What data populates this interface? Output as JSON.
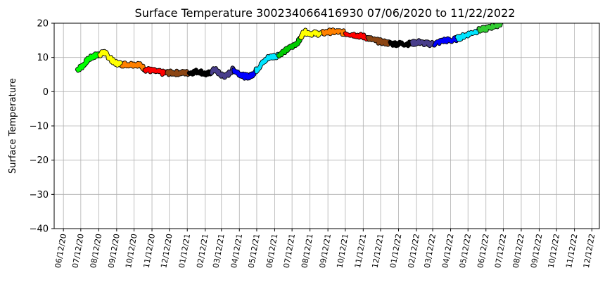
{
  "chart_data": {
    "type": "line",
    "title": "Surface Temperature 300234066416930  07/06/2020 to 11/22/2022",
    "xlabel": "",
    "ylabel": "Surface Temperature",
    "ylim": [
      -40,
      20
    ],
    "yticks": [
      -40,
      -30,
      -20,
      -10,
      0,
      10,
      20
    ],
    "xlim": [
      "2020-05-27",
      "2022-12-25"
    ],
    "xticks": [
      "06/12/20",
      "07/12/20",
      "08/12/20",
      "09/12/20",
      "10/12/20",
      "11/12/20",
      "12/12/20",
      "01/12/21",
      "02/12/21",
      "03/12/21",
      "04/12/21",
      "05/12/21",
      "06/12/21",
      "07/12/21",
      "08/12/21",
      "09/12/21",
      "10/12/21",
      "11/12/21",
      "12/12/21",
      "01/12/22",
      "02/12/22",
      "03/12/22",
      "04/12/22",
      "05/12/22",
      "06/12/22",
      "07/12/22",
      "08/12/22",
      "09/12/22",
      "10/12/22",
      "11/12/22",
      "12/12/22"
    ],
    "grid": true,
    "segment_colors": [
      "#00ff00",
      "#ffff00",
      "#ff8000",
      "#ff0000",
      "#8b4513",
      "#000000",
      "#483d8b",
      "#0000ff",
      "#00e5ff",
      "#00cc00",
      "#ffff00",
      "#ff8000",
      "#ff0000",
      "#8b4513",
      "#000000",
      "#483d8b",
      "#0000ff",
      "#00e5ff",
      "#32cd32"
    ],
    "series": [
      {
        "x": [
          "2020-07-06",
          "2020-07-15",
          "2020-07-25",
          "2020-08-05",
          "2020-08-15",
          "2020-08-22",
          "2020-08-30",
          "2020-09-08",
          "2020-09-20",
          "2020-10-05",
          "2020-10-20",
          "2020-11-01",
          "2020-11-15",
          "2020-12-01",
          "2020-12-15",
          "2021-01-01",
          "2021-01-15",
          "2021-02-01",
          "2021-02-15",
          "2021-03-01",
          "2021-03-10",
          "2021-03-20",
          "2021-04-01",
          "2021-04-10",
          "2021-04-20",
          "2021-05-01",
          "2021-05-10",
          "2021-05-20",
          "2021-06-01",
          "2021-06-15",
          "2021-07-01",
          "2021-07-15",
          "2021-07-25",
          "2021-08-01",
          "2021-08-15",
          "2021-09-01",
          "2021-09-15",
          "2021-10-01",
          "2021-10-15",
          "2021-11-01",
          "2021-11-15",
          "2021-12-01",
          "2021-12-15",
          "2022-01-01",
          "2022-01-15",
          "2022-02-01",
          "2022-02-15",
          "2022-03-01",
          "2022-03-15",
          "2022-04-01",
          "2022-04-15",
          "2022-05-01",
          "2022-05-15",
          "2022-06-01",
          "2022-06-15",
          "2022-07-01",
          "2022-07-08"
        ],
        "values": [
          6.5,
          7.5,
          9.5,
          10.5,
          11,
          11.5,
          10,
          8.5,
          8,
          8,
          8,
          6.5,
          6,
          5.5,
          5.5,
          5.5,
          5.5,
          6,
          5,
          6.5,
          5,
          4.5,
          6.5,
          5.5,
          4.5,
          4.5,
          6,
          8,
          10,
          10.5,
          12,
          13.5,
          15,
          17.5,
          17,
          17,
          17.5,
          17.5,
          17,
          16.5,
          16,
          15,
          14.5,
          14,
          14,
          14,
          14.5,
          14,
          14,
          15,
          15,
          16,
          17,
          18,
          18.5,
          19.5,
          20
        ]
      }
    ]
  }
}
